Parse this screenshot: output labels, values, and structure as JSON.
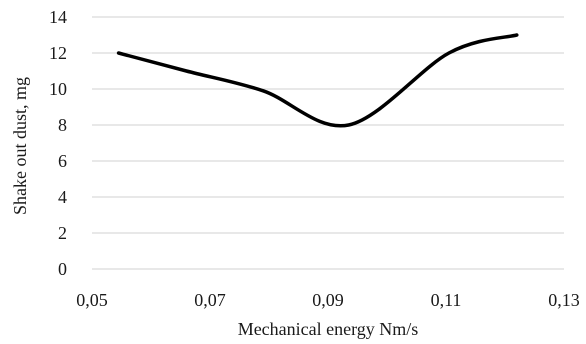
{
  "chart_data": {
    "type": "line",
    "title": "",
    "xlabel": "Mechanical energy Nm/s",
    "ylabel": "Shake out dust, mg",
    "xlim": [
      0.05,
      0.13
    ],
    "ylim": [
      0,
      14
    ],
    "x_ticks": [
      0.05,
      0.07,
      0.09,
      0.11,
      0.13
    ],
    "x_tick_labels": [
      "0,05",
      "0,07",
      "0,09",
      "0,11",
      "0,13"
    ],
    "y_ticks": [
      0,
      2,
      4,
      6,
      8,
      10,
      12,
      14
    ],
    "y_tick_labels": [
      "0",
      "2",
      "4",
      "6",
      "8",
      "10",
      "12",
      "14"
    ],
    "grid": true,
    "legend": "none",
    "smooth": true,
    "line_color": "#000000",
    "series": [
      {
        "x": [
          0.0545,
          0.066,
          0.079,
          0.0935,
          0.1105,
          0.122
        ],
        "values": [
          12,
          11,
          9.9,
          8,
          12,
          13
        ]
      }
    ]
  }
}
